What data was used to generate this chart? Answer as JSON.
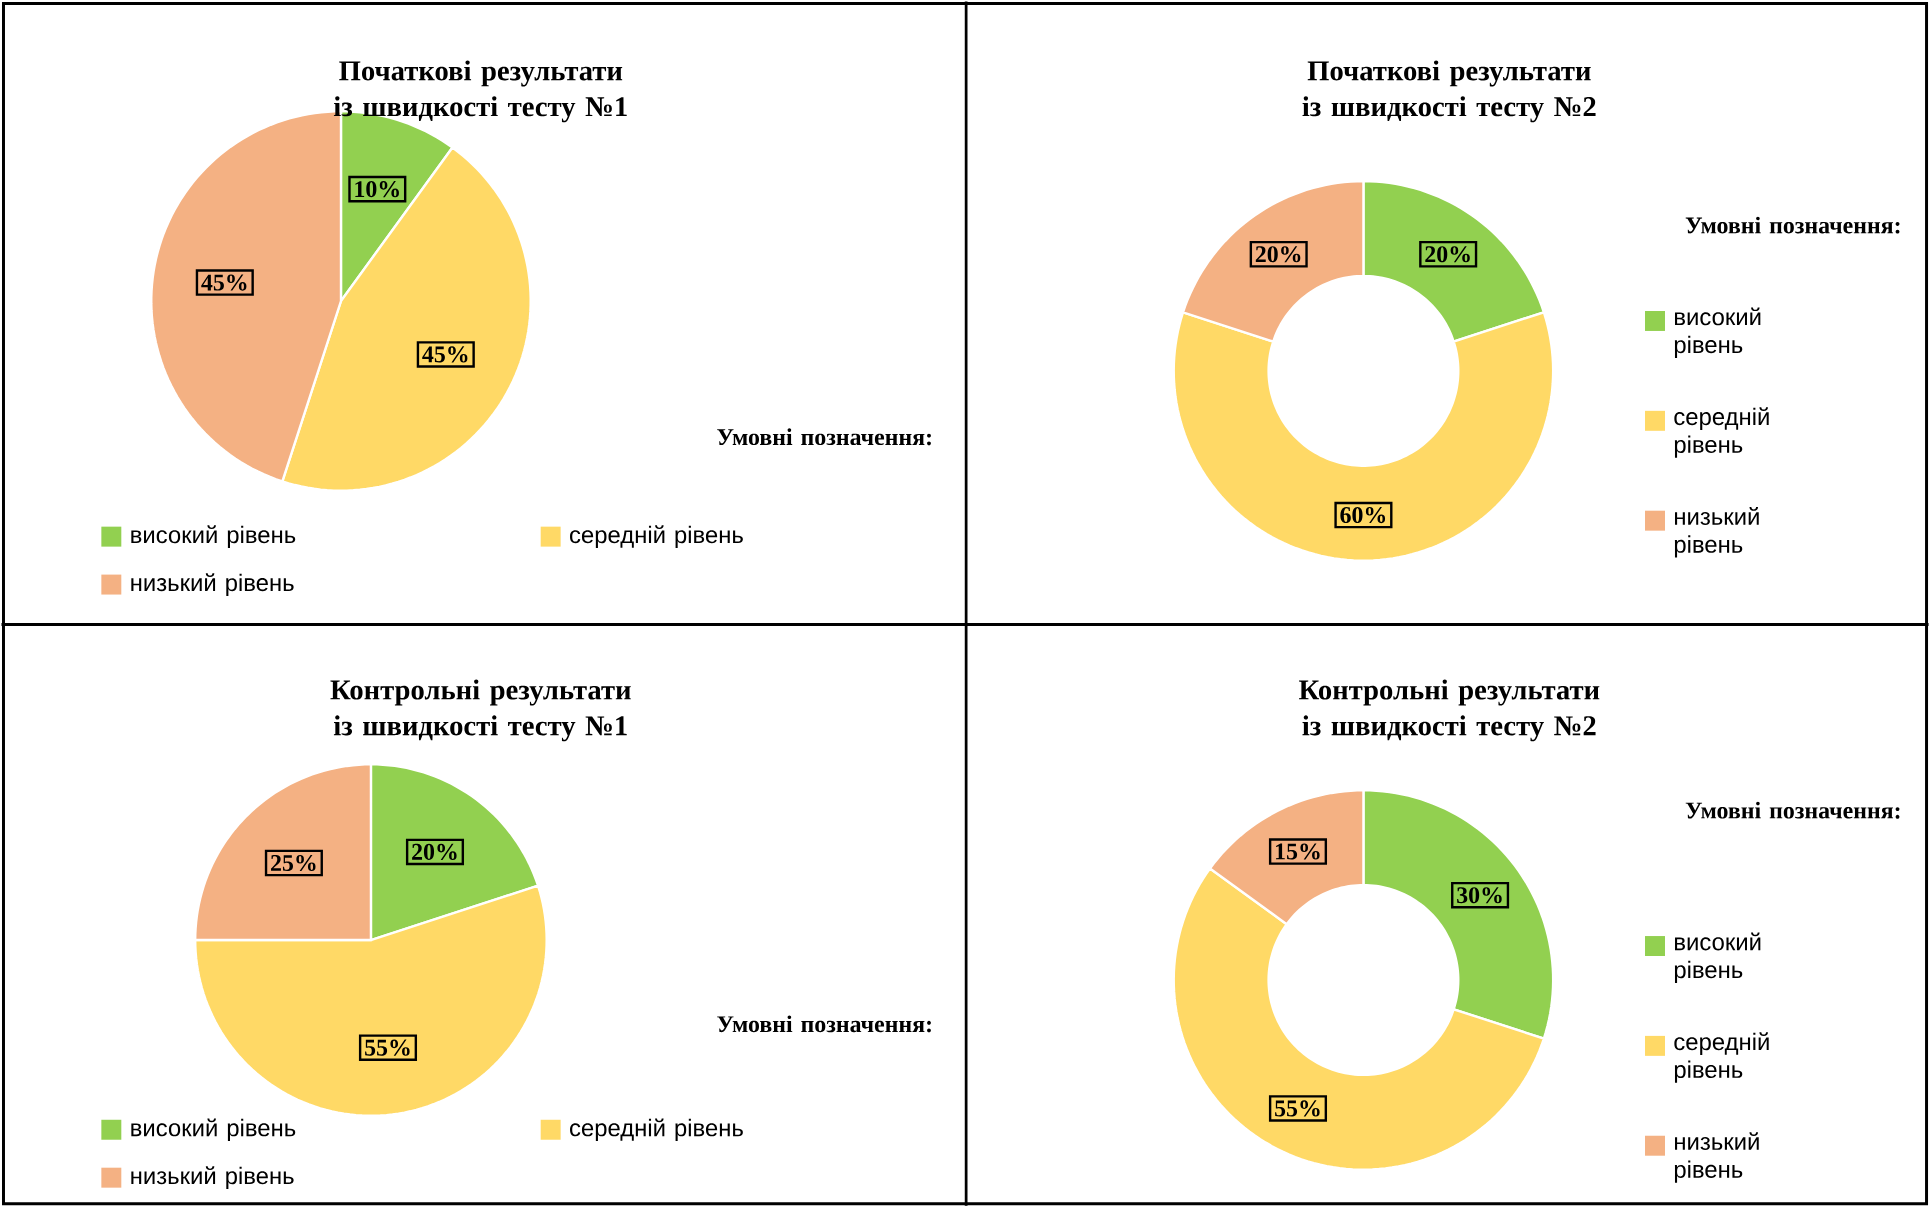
{
  "chart_data": [
    {
      "type": "pie",
      "title": "Початкові результати із швидкості тесту №1",
      "categories": [
        "високий рівень",
        "середній рівень",
        "низький рівень"
      ],
      "values": [
        10,
        45,
        45
      ],
      "value_labels": [
        "10%",
        "45%",
        "45%"
      ],
      "colors": [
        "#92d050",
        "#ffd966",
        "#f4b183"
      ],
      "legend_title": "Умовні позначення:",
      "legend": "bottom"
    },
    {
      "type": "donut",
      "title": "Початкові результати із швидкості тесту №2",
      "categories": [
        "високий рівень",
        "середній рівень",
        "низький рівень"
      ],
      "values": [
        20,
        60,
        20
      ],
      "value_labels": [
        "20%",
        "60%",
        "20%"
      ],
      "colors": [
        "#92d050",
        "#ffd966",
        "#f4b183"
      ],
      "legend_title": "Умовні позначення:",
      "legend": "right"
    },
    {
      "type": "pie",
      "title": "Контрольні результати із швидкості тесту №1",
      "categories": [
        "високий рівень",
        "середній рівень",
        "низький рівень"
      ],
      "values": [
        20,
        55,
        25
      ],
      "value_labels": [
        "20%",
        "55%",
        "25%"
      ],
      "colors": [
        "#92d050",
        "#ffd966",
        "#f4b183"
      ],
      "legend_title": "Умовні позначення:",
      "legend": "bottom"
    },
    {
      "type": "donut",
      "title": "Контрольні результати із швидкості тесту №2",
      "categories": [
        "високий рівень",
        "середній рівень",
        "низький рівень"
      ],
      "values": [
        30,
        55,
        15
      ],
      "value_labels": [
        "30%",
        "55%",
        "15%"
      ],
      "colors": [
        "#92d050",
        "#ffd966",
        "#f4b183"
      ],
      "legend_title": "Умовні позначення:",
      "legend": "right"
    }
  ]
}
